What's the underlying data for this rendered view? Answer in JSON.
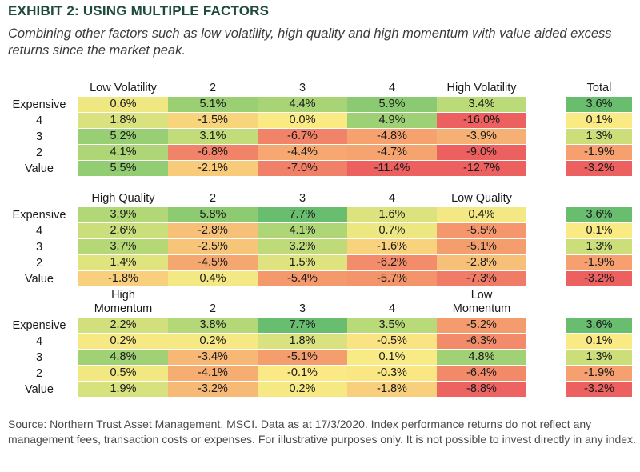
{
  "title": "EXHIBIT 2: USING MULTIPLE FACTORS",
  "subtitle": "Combining other factors such as low volatility, high quality and high momentum with value aided excess returns since the market peak.",
  "footer": "Source: Northern Trust Asset Management. MSCI.  Data as at 17/3/2020.  Index performance returns do not reflect any management fees, transaction costs or expenses. For illustrative purposes only. It is not possible to invest directly in any index.",
  "chart_data": [
    {
      "type": "table",
      "rows": [
        "Expensive",
        "4",
        "3",
        "2",
        "Value"
      ],
      "columns": [
        "Low Volatility",
        "2",
        "3",
        "4",
        "High Volatility"
      ],
      "total_label": "Total",
      "values": [
        [
          0.6,
          5.1,
          4.4,
          5.9,
          3.4
        ],
        [
          1.8,
          -1.5,
          0.0,
          4.9,
          -16.0
        ],
        [
          5.2,
          3.1,
          -6.7,
          -4.8,
          -3.9
        ],
        [
          4.1,
          -6.8,
          -4.4,
          -4.7,
          -9.0
        ],
        [
          5.5,
          -2.1,
          -7.0,
          -11.4,
          -12.7
        ]
      ],
      "totals": [
        3.6,
        0.1,
        1.3,
        -1.9,
        -3.2
      ]
    },
    {
      "type": "table",
      "rows": [
        "Expensive",
        "4",
        "3",
        "2",
        "Value"
      ],
      "columns": [
        "High Quality",
        "2",
        "3",
        "4",
        "Low Quality"
      ],
      "values": [
        [
          3.9,
          5.8,
          7.7,
          1.6,
          0.4
        ],
        [
          2.6,
          -2.8,
          4.1,
          0.7,
          -5.5
        ],
        [
          3.7,
          -2.5,
          3.2,
          -1.6,
          -5.1
        ],
        [
          1.4,
          -4.5,
          1.5,
          -6.2,
          -2.8
        ],
        [
          -1.8,
          0.4,
          -5.4,
          -5.7,
          -7.3
        ]
      ],
      "totals": [
        3.6,
        0.1,
        1.3,
        -1.9,
        -3.2
      ]
    },
    {
      "type": "table",
      "rows": [
        "Expensive",
        "4",
        "3",
        "2",
        "Value"
      ],
      "columns": [
        "High Momentum",
        "2",
        "3",
        "4",
        "Low Momentum"
      ],
      "values": [
        [
          2.2,
          3.8,
          7.7,
          3.5,
          -5.2
        ],
        [
          0.2,
          0.2,
          1.8,
          -0.5,
          -6.3
        ],
        [
          4.8,
          -3.4,
          -5.1,
          0.1,
          4.8
        ],
        [
          0.5,
          -4.1,
          -0.1,
          -0.3,
          -6.4
        ],
        [
          1.9,
          -3.2,
          0.2,
          -1.8,
          -8.8
        ]
      ],
      "totals": [
        3.6,
        0.1,
        1.3,
        -1.9,
        -3.2
      ]
    }
  ]
}
